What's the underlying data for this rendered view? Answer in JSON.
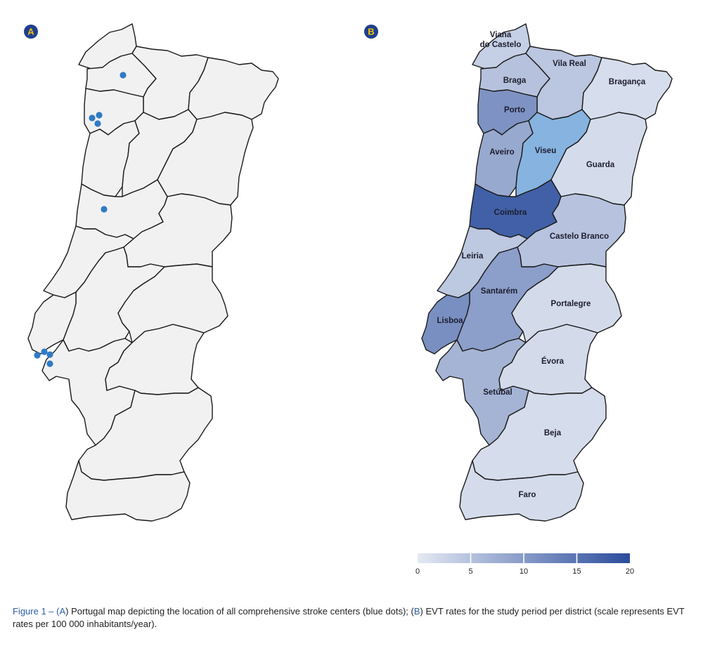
{
  "panels": {
    "a_label": "A",
    "b_label": "B"
  },
  "colors": {
    "panel_badge_fill": "#1f3f8f",
    "panel_badge_text": "#f2c500",
    "map_a_fill": "#f1f1f1",
    "stroke_center_dot": "#2f7bc4",
    "scale": [
      "#e4e9f3",
      "#2a4c9c"
    ]
  },
  "districts": [
    {
      "name": "Viana do Castelo",
      "label_lines": [
        "Viana",
        "do Castelo"
      ],
      "evt_rate": 3.3
    },
    {
      "name": "Braga",
      "label_lines": [
        "Braga"
      ],
      "evt_rate": 5.0
    },
    {
      "name": "Vila Real",
      "label_lines": [
        "Vila Real"
      ],
      "evt_rate": 4.4
    },
    {
      "name": "Bragança",
      "label_lines": [
        "Bragança"
      ],
      "evt_rate": 1.5
    },
    {
      "name": "Porto",
      "label_lines": [
        "Porto"
      ],
      "evt_rate": 11.0
    },
    {
      "name": "Aveiro",
      "label_lines": [
        "Aveiro"
      ],
      "evt_rate": 8.2
    },
    {
      "name": "Viseu",
      "label_lines": [
        "Viseu"
      ],
      "evt_rate": 6.0,
      "fill_override": "#86b3e0"
    },
    {
      "name": "Guarda",
      "label_lines": [
        "Guarda"
      ],
      "evt_rate": 1.7
    },
    {
      "name": "Coimbra",
      "label_lines": [
        "Coimbra"
      ],
      "evt_rate": 17.5
    },
    {
      "name": "Castelo Branco",
      "label_lines": [
        "Castelo Branco"
      ],
      "evt_rate": 4.8
    },
    {
      "name": "Leiria",
      "label_lines": [
        "Leiria"
      ],
      "evt_rate": 4.2
    },
    {
      "name": "Santarém",
      "label_lines": [
        "Santarém"
      ],
      "evt_rate": 9.5
    },
    {
      "name": "Portalegre",
      "label_lines": [
        "Portalegre"
      ],
      "evt_rate": 1.8
    },
    {
      "name": "Lisboa",
      "label_lines": [
        "Lisboa"
      ],
      "evt_rate": 11.5
    },
    {
      "name": "Setúbal",
      "label_lines": [
        "Setúbal"
      ],
      "evt_rate": 6.8
    },
    {
      "name": "Évora",
      "label_lines": [
        "Évora"
      ],
      "evt_rate": 1.8
    },
    {
      "name": "Beja",
      "label_lines": [
        "Beja"
      ],
      "evt_rate": 1.6
    },
    {
      "name": "Faro",
      "label_lines": [
        "Faro"
      ],
      "evt_rate": 1.7
    }
  ],
  "stroke_centers": [
    {
      "district": "Braga",
      "count": 1
    },
    {
      "district": "Porto",
      "count": 3
    },
    {
      "district": "Coimbra",
      "count": 1
    },
    {
      "district": "Lisboa",
      "count": 4
    }
  ],
  "scale": {
    "min": 0,
    "max": 20,
    "ticks": [
      "0",
      "5",
      "10",
      "15",
      "20"
    ]
  },
  "caption": {
    "prefix": "Figure 1 – (",
    "a": "A",
    "mid1": ") Portugal map depicting the location of all comprehensive stroke centers (blue dots); (",
    "b": "B",
    "rest": ") EVT rates for the study period per district (scale represents EVT rates per 100 000 inhabitants/year)."
  }
}
